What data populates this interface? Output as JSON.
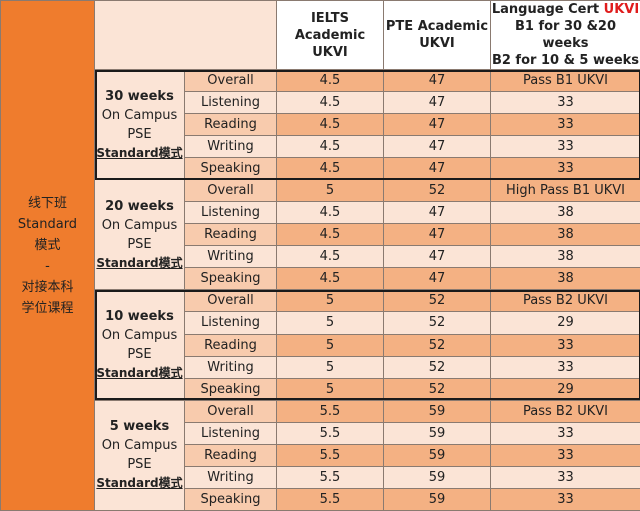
{
  "sidebar": {
    "line1": "线下班",
    "line2": "Standard",
    "line3": "模式",
    "line4": "-",
    "line5": "对接本科",
    "line6": "学位课程"
  },
  "headers": {
    "ielts": "IELTS Academic UKVI",
    "pte": "PTE Academic UKVI",
    "lc_prefix": "Language Cert ",
    "lc_highlight": "UKVI",
    "lc_line2": "B1  for 30 &20 weeks",
    "lc_line3": "B2 for 10 & 5 weeks"
  },
  "groups": [
    {
      "weeks": "30 weeks",
      "campus": "On Campus",
      "pse": "PSE",
      "mode": "Standard模式",
      "rows": [
        {
          "skill": "Overall",
          "ielts": "4.5",
          "pte": "47",
          "lc": "Pass B1 UKVI"
        },
        {
          "skill": "Listening",
          "ielts": "4.5",
          "pte": "47",
          "lc": "33"
        },
        {
          "skill": "Reading",
          "ielts": "4.5",
          "pte": "47",
          "lc": "33"
        },
        {
          "skill": "Writing",
          "ielts": "4.5",
          "pte": "47",
          "lc": "33"
        },
        {
          "skill": "Speaking",
          "ielts": "4.5",
          "pte": "47",
          "lc": "33"
        }
      ]
    },
    {
      "weeks": "20 weeks",
      "campus": "On Campus",
      "pse": "PSE",
      "mode": "Standard模式",
      "rows": [
        {
          "skill": "Overall",
          "ielts": "5",
          "pte": "52",
          "lc": "High Pass B1 UKVI"
        },
        {
          "skill": "Listening",
          "ielts": "4.5",
          "pte": "47",
          "lc": "38"
        },
        {
          "skill": "Reading",
          "ielts": "4.5",
          "pte": "47",
          "lc": "38"
        },
        {
          "skill": "Writing",
          "ielts": "4.5",
          "pte": "47",
          "lc": "38"
        },
        {
          "skill": "Speaking",
          "ielts": "4.5",
          "pte": "47",
          "lc": "38"
        }
      ]
    },
    {
      "weeks": "10 weeks",
      "campus": "On Campus",
      "pse": "PSE",
      "mode": "Standard模式",
      "rows": [
        {
          "skill": "Overall",
          "ielts": "5",
          "pte": "52",
          "lc": "Pass B2 UKVI"
        },
        {
          "skill": "Listening",
          "ielts": "5",
          "pte": "52",
          "lc": "29"
        },
        {
          "skill": "Reading",
          "ielts": "5",
          "pte": "52",
          "lc": "33"
        },
        {
          "skill": "Writing",
          "ielts": "5",
          "pte": "52",
          "lc": "33"
        },
        {
          "skill": "Speaking",
          "ielts": "5",
          "pte": "52",
          "lc": "29"
        }
      ]
    },
    {
      "weeks": "5 weeks",
      "campus": "On Campus",
      "pse": "PSE",
      "mode": "Standard模式",
      "rows": [
        {
          "skill": "Overall",
          "ielts": "5.5",
          "pte": "59",
          "lc": "Pass B2 UKVI"
        },
        {
          "skill": "Listening",
          "ielts": "5.5",
          "pte": "59",
          "lc": "33"
        },
        {
          "skill": "Reading",
          "ielts": "5.5",
          "pte": "59",
          "lc": "33"
        },
        {
          "skill": "Writing",
          "ielts": "5.5",
          "pte": "59",
          "lc": "33"
        },
        {
          "skill": "Speaking",
          "ielts": "5.5",
          "pte": "59",
          "lc": "33"
        }
      ]
    }
  ],
  "colors": {
    "sidebar": "#ef7c2d",
    "light_peach": "#fbe4d6",
    "mid_peach": "#f8cbad",
    "dark_peach": "#f4b183",
    "highlight_red": "#e01c1c"
  }
}
